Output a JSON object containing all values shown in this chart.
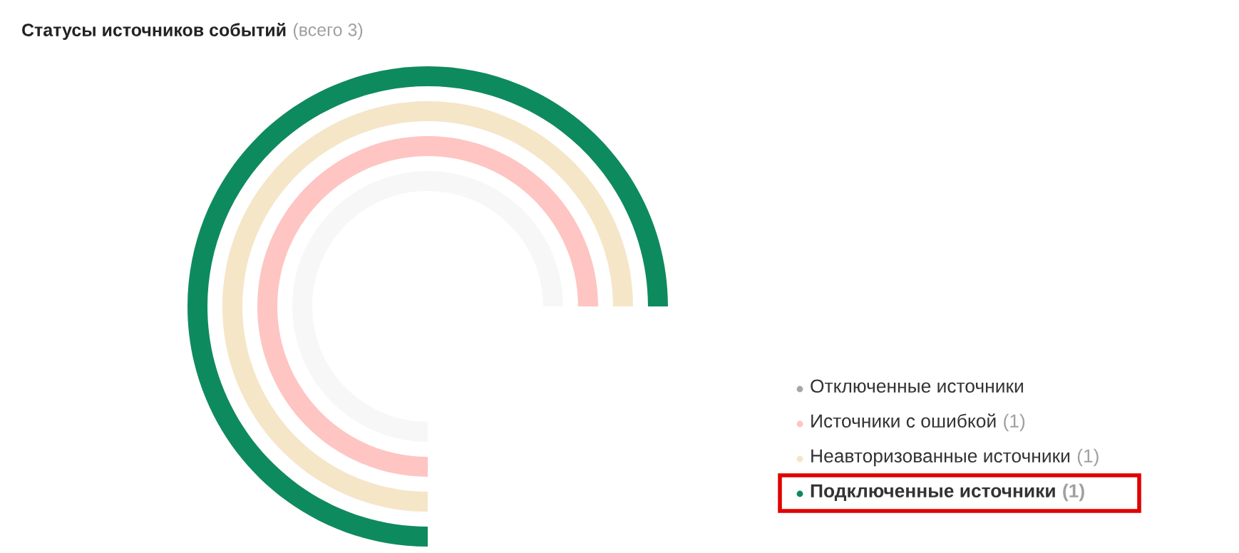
{
  "chart_data": {
    "type": "other",
    "title": "Статусы источников событий",
    "subtitle": "(всего 3)",
    "series": [
      {
        "name": "Отключенные источники",
        "color": "#a6a6a6",
        "values": [
          null
        ]
      },
      {
        "name": "Источники с ошибкой",
        "color": "#fec5c2",
        "values": [
          1
        ],
        "value_labels": [
          "(1)"
        ]
      },
      {
        "name": "Неавторизованные источники",
        "color": "#f5e6c8",
        "values": [
          1
        ],
        "value_labels": [
          "(1)"
        ]
      },
      {
        "name": "Подключенные источники",
        "color": "#0e8a5f",
        "values": [
          1
        ],
        "value_labels": [
          "(1)"
        ]
      }
    ],
    "legend": "bottom right"
  }
}
